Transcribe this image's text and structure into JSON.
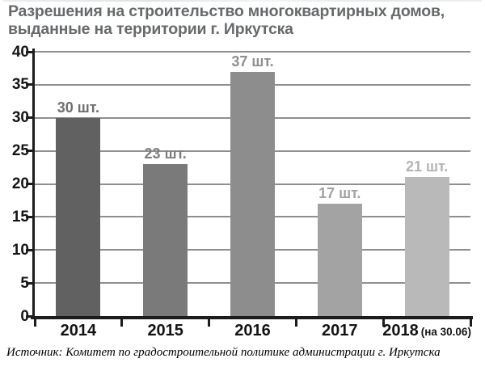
{
  "title": {
    "line1": "Разрешения на строительство многоквартирных домов,",
    "line2": "выданные на территории г. Иркутска"
  },
  "chart_data": {
    "type": "bar",
    "title": "Разрешения на строительство многоквартирных домов, выданные на территории г. Иркутска",
    "categories": [
      "2014",
      "2015",
      "2016",
      "2017",
      "2018"
    ],
    "category_suffixes": [
      "",
      "",
      "",
      "",
      "(на 30.06)"
    ],
    "values": [
      30,
      23,
      37,
      17,
      21
    ],
    "bar_labels": [
      "30 шт.",
      "23 шт.",
      "37 шт.",
      "17 шт.",
      "21 шт."
    ],
    "bar_colors": [
      "#616161",
      "#7a7a7a",
      "#8d8d8d",
      "#a3a3a3",
      "#b9b9b9"
    ],
    "bar_label_colors": [
      "#6e6e6e",
      "#7f7f7f",
      "#8f8f8f",
      "#a2a2a2",
      "#b3b3b3"
    ],
    "ylim": [
      0,
      40
    ],
    "yticks": [
      0,
      5,
      10,
      15,
      20,
      25,
      30,
      35,
      40
    ],
    "xlabel": "",
    "ylabel": "",
    "grid": true,
    "legend_position": "none"
  },
  "source": "Источник: Комитет по градостроительной политике администрации г. Иркутска",
  "colors": {
    "title_text": "#67696c",
    "axis": "#1c1c1c",
    "gridline": "#8f8f8f",
    "tick_label": "#141414"
  }
}
